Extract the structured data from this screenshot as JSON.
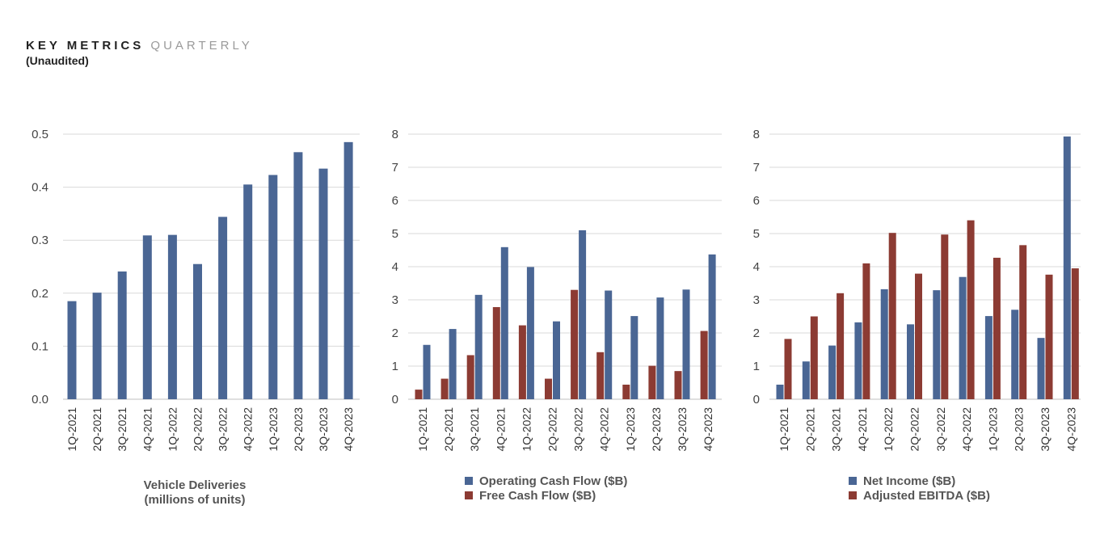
{
  "header": {
    "title_bold": "KEY METRICS",
    "title_light": "QUARTERLY",
    "subtitle": "(Unaudited)"
  },
  "colors": {
    "blue": "#4a6694",
    "red": "#8c3b33",
    "grid": "#d9d9d9",
    "axis": "#bfbfbf"
  },
  "chart_data": [
    {
      "type": "bar",
      "categories": [
        "1Q-2021",
        "2Q-2021",
        "3Q-2021",
        "4Q-2021",
        "1Q-2022",
        "2Q-2022",
        "3Q-2022",
        "4Q-2022",
        "1Q-2023",
        "2Q-2023",
        "3Q-2023",
        "4Q-2023"
      ],
      "series": [
        {
          "values": [
            0.185,
            0.201,
            0.241,
            0.309,
            0.31,
            0.255,
            0.344,
            0.405,
            0.423,
            0.466,
            0.435,
            0.485
          ]
        }
      ],
      "xlabel_lines": [
        "Vehicle Deliveries",
        "(millions of units)"
      ],
      "ylim": [
        0,
        0.5
      ],
      "yticks": [
        "0.0",
        "0.1",
        "0.2",
        "0.3",
        "0.4",
        "0.5"
      ],
      "grid": true
    },
    {
      "type": "bar",
      "categories": [
        "1Q-2021",
        "2Q-2021",
        "3Q-2021",
        "4Q-2021",
        "1Q-2022",
        "2Q-2022",
        "3Q-2022",
        "4Q-2022",
        "1Q-2023",
        "2Q-2023",
        "3Q-2023",
        "4Q-2023"
      ],
      "series": [
        {
          "name": "Free Cash Flow ($B)",
          "values": [
            0.29,
            0.62,
            1.33,
            2.78,
            2.23,
            0.62,
            3.3,
            1.42,
            0.44,
            1.01,
            0.85,
            2.06
          ]
        },
        {
          "name": "Operating Cash Flow ($B)",
          "values": [
            1.64,
            2.12,
            3.15,
            4.59,
            3.99,
            2.35,
            5.1,
            3.28,
            2.51,
            3.07,
            3.31,
            4.37
          ]
        }
      ],
      "legend": [
        "Operating Cash Flow ($B)",
        "Free Cash Flow ($B)"
      ],
      "legend_position": "bottom",
      "ylim": [
        0,
        8
      ],
      "yticks": [
        "0",
        "1",
        "2",
        "3",
        "4",
        "5",
        "6",
        "7",
        "8"
      ],
      "grid": true
    },
    {
      "type": "bar",
      "categories": [
        "1Q-2021",
        "2Q-2021",
        "3Q-2021",
        "4Q-2021",
        "1Q-2022",
        "2Q-2022",
        "3Q-2022",
        "4Q-2022",
        "1Q-2023",
        "2Q-2023",
        "3Q-2023",
        "4Q-2023"
      ],
      "series": [
        {
          "name": "Net Income ($B)",
          "values": [
            0.44,
            1.14,
            1.62,
            2.32,
            3.32,
            2.26,
            3.29,
            3.69,
            2.51,
            2.7,
            1.85,
            7.93
          ]
        },
        {
          "name": "Adjusted EBITDA ($B)",
          "values": [
            1.82,
            2.5,
            3.2,
            4.1,
            5.02,
            3.79,
            4.97,
            5.4,
            4.27,
            4.65,
            3.76,
            3.95
          ]
        }
      ],
      "legend": [
        "Net Income ($B)",
        "Adjusted EBITDA ($B)"
      ],
      "legend_position": "bottom",
      "ylim": [
        0,
        8
      ],
      "yticks": [
        "0",
        "1",
        "2",
        "3",
        "4",
        "5",
        "6",
        "7",
        "8"
      ],
      "grid": true
    }
  ]
}
